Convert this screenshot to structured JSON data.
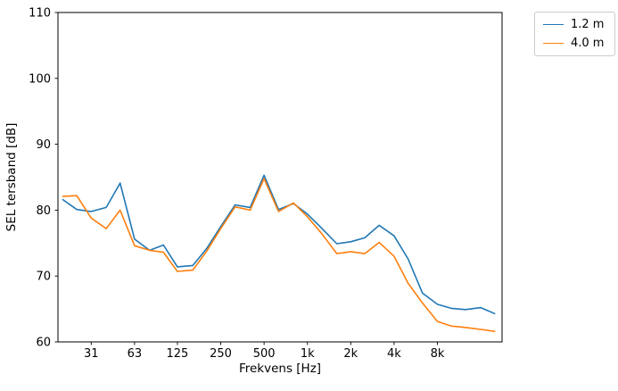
{
  "chart_data": {
    "type": "line",
    "title": "",
    "xlabel": "Frekvens [Hz]",
    "ylabel": "SEL tersband [dB]",
    "x_scale": "log",
    "xlim": [
      18.5,
      22500
    ],
    "ylim": [
      60,
      110
    ],
    "grid": false,
    "legend_position": "outside-top-right",
    "yticks": [
      60,
      70,
      80,
      90,
      100,
      110
    ],
    "xticks": [
      {
        "value": 31.5,
        "label": "31"
      },
      {
        "value": 63,
        "label": "63"
      },
      {
        "value": 125,
        "label": "125"
      },
      {
        "value": 250,
        "label": "250"
      },
      {
        "value": 500,
        "label": "500"
      },
      {
        "value": 1000,
        "label": "1k"
      },
      {
        "value": 2000,
        "label": "2k"
      },
      {
        "value": 4000,
        "label": "4k"
      },
      {
        "value": 8000,
        "label": "8k"
      }
    ],
    "x": [
      20,
      25,
      31.5,
      40,
      50,
      63,
      80,
      100,
      125,
      160,
      200,
      250,
      315,
      400,
      500,
      630,
      800,
      1000,
      1250,
      1600,
      2000,
      2500,
      3150,
      4000,
      5000,
      6300,
      8000,
      10000,
      12500,
      16000,
      20000
    ],
    "series": [
      {
        "name": "1.2 m",
        "color": "#1f77b4",
        "values": [
          81.6,
          80.1,
          79.8,
          80.4,
          84.1,
          75.6,
          73.9,
          74.7,
          71.4,
          71.6,
          74.2,
          77.5,
          80.8,
          80.4,
          85.3,
          80.1,
          81.0,
          79.4,
          77.3,
          74.9,
          75.2,
          75.8,
          77.7,
          76.1,
          72.6,
          67.4,
          65.7,
          65.1,
          64.9,
          65.2,
          64.3
        ]
      },
      {
        "name": "4.0 m",
        "color": "#ff7f0e",
        "values": [
          82.1,
          82.2,
          78.8,
          77.2,
          80.0,
          74.6,
          73.9,
          73.6,
          70.7,
          70.9,
          73.8,
          77.2,
          80.5,
          80.0,
          84.8,
          79.8,
          81.1,
          79.0,
          76.5,
          73.4,
          73.7,
          73.4,
          75.1,
          73.0,
          68.9,
          65.9,
          63.1,
          62.4,
          62.2,
          61.9,
          61.6
        ]
      }
    ]
  }
}
